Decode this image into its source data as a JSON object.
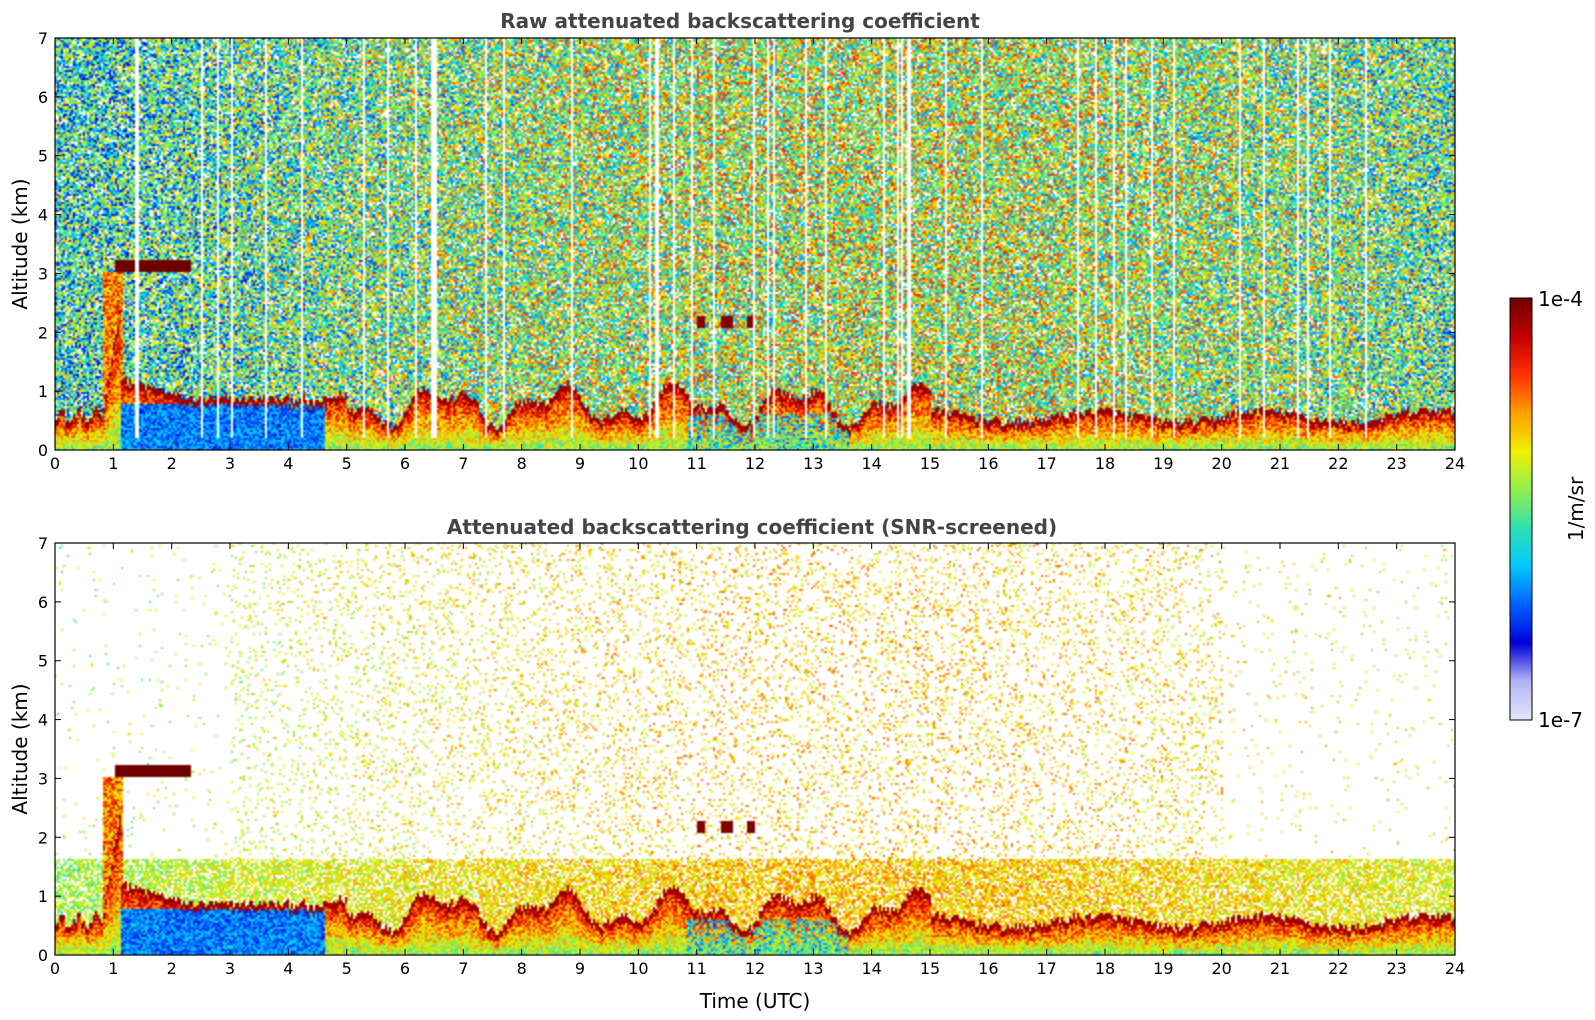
{
  "chart_data": [
    {
      "type": "heatmap",
      "title": "Raw attenuated backscattering coefficient",
      "xlabel": "",
      "ylabel": "Altitude (km)",
      "xlim": [
        0,
        24
      ],
      "ylim": [
        0,
        7
      ],
      "xticks": [
        "0",
        "1",
        "2",
        "3",
        "4",
        "5",
        "6",
        "7",
        "8",
        "9",
        "10",
        "11",
        "12",
        "13",
        "14",
        "15",
        "16",
        "17",
        "18",
        "19",
        "20",
        "21",
        "22",
        "23",
        "24"
      ],
      "yticks": [
        "0",
        "1",
        "2",
        "3",
        "4",
        "5",
        "6",
        "7"
      ],
      "grid": false,
      "features": [
        {
          "kind": "cloud_layer",
          "x": [
            1.0,
            2.3
          ],
          "altitude_km": 3.1
        },
        {
          "kind": "boundary_layer_top",
          "x": [
            2.2,
            4.5
          ],
          "altitude_km": 0.85
        },
        {
          "kind": "boundary_layer_top",
          "x": [
            15.0,
            24.0
          ],
          "altitude_km": 0.4
        },
        {
          "kind": "aerosol_patches",
          "x": [
            11.0,
            12.7
          ],
          "altitude_km": 2.15
        }
      ],
      "noise": "full"
    },
    {
      "type": "heatmap",
      "title": "Attenuated backscattering coefficient (SNR-screened)",
      "xlabel": "Time (UTC)",
      "ylabel": "Altitude (km)",
      "xlim": [
        0,
        24
      ],
      "ylim": [
        0,
        7
      ],
      "xticks": [
        "0",
        "1",
        "2",
        "3",
        "4",
        "5",
        "6",
        "7",
        "8",
        "9",
        "10",
        "11",
        "12",
        "13",
        "14",
        "15",
        "16",
        "17",
        "18",
        "19",
        "20",
        "21",
        "22",
        "23",
        "24"
      ],
      "yticks": [
        "0",
        "1",
        "2",
        "3",
        "4",
        "5",
        "6",
        "7"
      ],
      "grid": false,
      "features": [
        {
          "kind": "cloud_layer",
          "x": [
            1.0,
            2.3
          ],
          "altitude_km": 3.1
        },
        {
          "kind": "boundary_layer_top",
          "x": [
            2.2,
            4.5
          ],
          "altitude_km": 0.85
        },
        {
          "kind": "boundary_layer_top",
          "x": [
            15.0,
            24.0
          ],
          "altitude_km": 0.4
        },
        {
          "kind": "aerosol_patches",
          "x": [
            11.0,
            12.7
          ],
          "altitude_km": 2.15
        }
      ],
      "noise": "screened"
    }
  ],
  "colorbar": {
    "label": "1/m/sr",
    "max_label": "1e-4",
    "min_label": "1e-7",
    "scale": "log",
    "range": [
      1e-07,
      0.0001
    ],
    "colormap": [
      "#e6e6ff",
      "#b4b4f5",
      "#0000d8",
      "#0060ff",
      "#00c8ff",
      "#30e0b0",
      "#90f050",
      "#f0f000",
      "#ffa000",
      "#ff3000",
      "#c00000",
      "#700000"
    ]
  }
}
